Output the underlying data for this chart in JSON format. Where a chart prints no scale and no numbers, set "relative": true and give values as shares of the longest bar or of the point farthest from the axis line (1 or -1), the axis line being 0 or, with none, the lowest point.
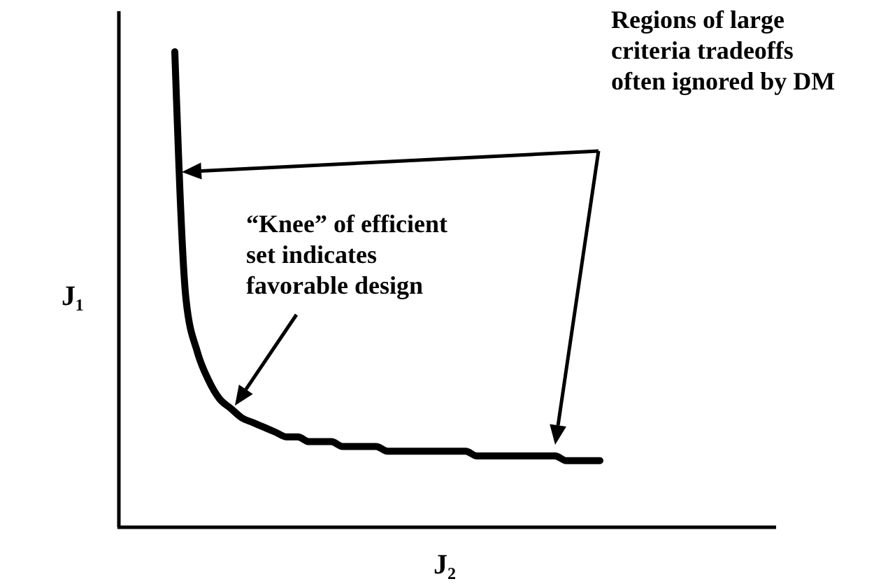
{
  "chart_data": {
    "type": "line",
    "relative": true,
    "xlabel": "J₂",
    "ylabel": "J₁",
    "categories": [
      null,
      null,
      null,
      null,
      null,
      null,
      null,
      null,
      null,
      null,
      null,
      null,
      null,
      null,
      null,
      null,
      null,
      null,
      null,
      null,
      null,
      null,
      null,
      null,
      null,
      null,
      null,
      null,
      null,
      null,
      null,
      null,
      null,
      null,
      null,
      null,
      null,
      null,
      null
    ],
    "series": [
      {
        "color": "#000000",
        "values": [
          1,
          0.48,
          0.37,
          0.31,
          0.27,
          0.25,
          0.23,
          0.22,
          0.21,
          0.2,
          0.19,
          0.19,
          0.18,
          0.18,
          0.18,
          0.17,
          0.17,
          0.17,
          0.17,
          0.16,
          0.16,
          0.16,
          0.16,
          0.16,
          0.16,
          0.16,
          0.16,
          0.15,
          0.15,
          0.15,
          0.15,
          0.15,
          0.15,
          0.15,
          0.15,
          0.14,
          0.14,
          0.14,
          0.14
        ]
      }
    ],
    "annotations": [
      "Regions of large\ncriteria tradeoffs\noften ignored by DM",
      "“Knee” of efficient\nset indicates\nfavorable design"
    ],
    "marker": "none",
    "line_style": "solid"
  }
}
